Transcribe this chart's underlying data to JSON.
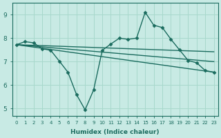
{
  "xlabel": "Humidex (Indice chaleur)",
  "ylabel": "",
  "xlim": [
    -0.5,
    23.5
  ],
  "ylim": [
    4.7,
    9.5
  ],
  "xticks": [
    0,
    1,
    2,
    3,
    4,
    5,
    6,
    7,
    8,
    9,
    10,
    11,
    12,
    13,
    14,
    15,
    16,
    17,
    18,
    19,
    20,
    21,
    22,
    23
  ],
  "yticks": [
    5,
    6,
    7,
    8,
    9
  ],
  "bg_color": "#c8eae4",
  "line_color": "#1a6b5e",
  "grid_color": "#a8d8cc",
  "main_line": {
    "x": [
      0,
      1,
      2,
      3,
      4,
      5,
      6,
      7,
      8,
      9,
      10,
      11,
      12,
      13,
      14,
      15,
      16,
      17,
      18,
      19,
      20,
      21,
      22,
      23
    ],
    "y": [
      7.72,
      7.85,
      7.8,
      7.55,
      7.48,
      7.02,
      6.55,
      5.6,
      4.95,
      5.8,
      7.48,
      7.75,
      8.0,
      7.95,
      8.0,
      9.1,
      8.55,
      8.45,
      7.95,
      7.5,
      7.05,
      6.95,
      6.62,
      6.55
    ]
  },
  "trend_line1": {
    "x": [
      0,
      23
    ],
    "y": [
      7.72,
      7.42
    ]
  },
  "trend_line2": {
    "x": [
      0,
      23
    ],
    "y": [
      7.72,
      6.55
    ]
  },
  "trend_line3": {
    "x": [
      0,
      23
    ],
    "y": [
      7.72,
      7.0
    ]
  }
}
